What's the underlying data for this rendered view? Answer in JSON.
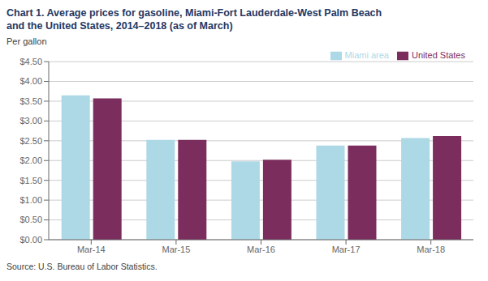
{
  "chart_data": {
    "type": "bar",
    "title": "Chart 1. Average prices for gasoline, Miami-Fort Lauderdale-West Palm Beach",
    "subtitle": "and the United States, 2014–2018 (as of March)",
    "ylabel": "Per gallon",
    "categories": [
      "Mar-14",
      "Mar-15",
      "Mar-16",
      "Mar-17",
      "Mar-18"
    ],
    "series": [
      {
        "name": "Miami area",
        "color": "#ADD8E6",
        "values": [
          3.65,
          2.52,
          1.98,
          2.38,
          2.57
        ]
      },
      {
        "name": "United States",
        "color": "#7B2D5E",
        "values": [
          3.57,
          2.52,
          2.02,
          2.38,
          2.62
        ]
      }
    ],
    "ylim": [
      0,
      4.5
    ],
    "yticks": [
      {
        "value": 0.0,
        "label": "$0.00"
      },
      {
        "value": 0.5,
        "label": "$0.50"
      },
      {
        "value": 1.0,
        "label": "$1.00"
      },
      {
        "value": 1.5,
        "label": "$1.50"
      },
      {
        "value": 2.0,
        "label": "$2.00"
      },
      {
        "value": 2.5,
        "label": "$2.50"
      },
      {
        "value": 3.0,
        "label": "$3.00"
      },
      {
        "value": 3.5,
        "label": "$3.50"
      },
      {
        "value": 4.0,
        "label": "$4.00"
      },
      {
        "value": 4.5,
        "label": "$4.50"
      }
    ],
    "grid": true,
    "legend": "upper right",
    "annotations": [
      "Source: U.S. Bureau of Labor Statistics."
    ]
  }
}
